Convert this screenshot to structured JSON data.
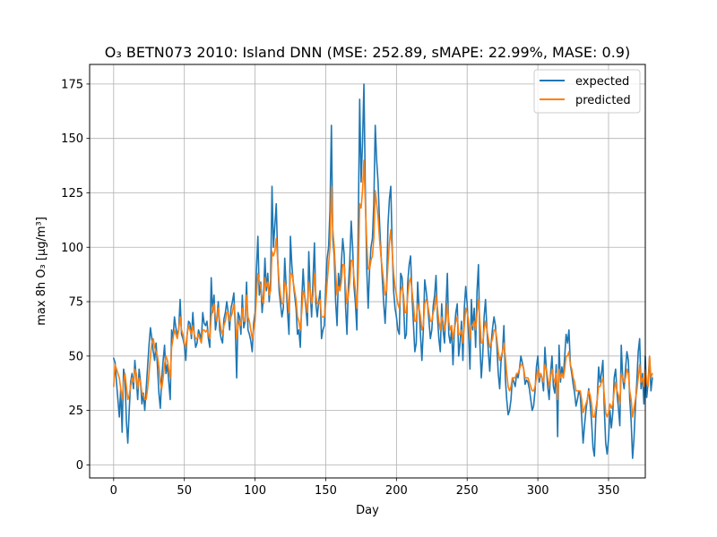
{
  "chart_data": {
    "type": "line",
    "title": "O₃ BETN073 2010: Island DNN (MSE: 252.89, sMAPE: 22.99%, MASE: 0.9)",
    "xlabel": "Day",
    "ylabel": "max 8h O₃ [μg/m³]",
    "xlim": [
      -17,
      376
    ],
    "ylim": [
      -6,
      184
    ],
    "xticks": [
      0,
      50,
      100,
      150,
      200,
      250,
      300,
      350
    ],
    "yticks": [
      0,
      25,
      50,
      75,
      100,
      125,
      150,
      175
    ],
    "grid": true,
    "legend_position": "top-right",
    "series": [
      {
        "name": "expected",
        "color": "#1f77b4",
        "values": [
          49,
          47,
          38,
          30,
          22,
          35,
          15,
          44,
          40,
          20,
          10,
          25,
          38,
          42,
          35,
          48,
          40,
          30,
          44,
          38,
          28,
          33,
          25,
          35,
          45,
          55,
          63,
          58,
          52,
          48,
          56,
          45,
          33,
          26,
          40,
          48,
          55,
          42,
          46,
          38,
          30,
          62,
          58,
          68,
          63,
          60,
          62,
          76,
          60,
          58,
          55,
          48,
          60,
          66,
          65,
          58,
          70,
          60,
          54,
          56,
          62,
          60,
          57,
          70,
          65,
          64,
          66,
          58,
          54,
          86,
          70,
          78,
          62,
          67,
          75,
          62,
          58,
          56,
          67,
          70,
          75,
          70,
          62,
          72,
          75,
          79,
          64,
          40,
          70,
          68,
          60,
          78,
          63,
          66,
          84,
          62,
          60,
          57,
          52,
          65,
          70,
          90,
          105,
          78,
          84,
          70,
          78,
          95,
          80,
          88,
          75,
          85,
          128,
          100,
          110,
          120,
          95,
          80,
          74,
          68,
          72,
          95,
          82,
          70,
          60,
          105,
          92,
          84,
          78,
          72,
          60,
          62,
          54,
          75,
          90,
          78,
          72,
          64,
          98,
          80,
          68,
          85,
          102,
          74,
          68,
          75,
          80,
          58,
          62,
          64,
          82,
          95,
          100,
          117,
          156,
          104,
          96,
          75,
          64,
          88,
          80,
          92,
          104,
          97,
          73,
          60,
          82,
          94,
          112,
          100,
          82,
          74,
          62,
          110,
          168,
          130,
          148,
          175,
          126,
          90,
          72,
          90,
          100,
          104,
          120,
          156,
          140,
          130,
          112,
          98,
          86,
          74,
          65,
          80,
          110,
          122,
          128,
          100,
          80,
          72,
          68,
          62,
          60,
          88,
          86,
          75,
          58,
          60,
          84,
          92,
          96,
          78,
          65,
          52,
          56,
          84,
          72,
          60,
          48,
          62,
          85,
          80,
          74,
          66,
          58,
          62,
          73,
          78,
          87,
          68,
          58,
          52,
          74,
          62,
          56,
          72,
          88,
          60,
          56,
          62,
          46,
          62,
          70,
          74,
          50,
          56,
          66,
          48,
          72,
          82,
          74,
          60,
          44,
          76,
          62,
          72,
          54,
          80,
          92,
          56,
          40,
          50,
          68,
          76,
          62,
          52,
          43,
          56,
          63,
          68,
          64,
          55,
          42,
          35,
          48,
          52,
          64,
          40,
          30,
          23,
          25,
          30,
          40,
          38,
          36,
          42,
          40,
          44,
          50,
          47,
          44,
          37,
          39,
          38,
          35,
          30,
          25,
          27,
          34,
          45,
          50,
          38,
          42,
          40,
          34,
          54,
          44,
          36,
          30,
          42,
          50,
          36,
          33,
          46,
          13,
          55,
          38,
          45,
          40,
          50,
          60,
          56,
          62,
          46,
          42,
          37,
          33,
          27,
          30,
          34,
          32,
          22,
          10,
          18,
          25,
          30,
          35,
          28,
          20,
          8,
          4,
          22,
          30,
          45,
          38,
          42,
          48,
          26,
          10,
          5,
          12,
          25,
          17,
          24,
          40,
          44,
          33,
          26,
          18,
          55,
          40,
          35,
          44,
          52,
          48,
          30,
          20,
          3,
          12,
          27,
          38,
          52,
          58,
          35,
          42,
          28,
          50,
          31,
          38,
          50,
          34,
          40
        ]
      },
      {
        "name": "predicted",
        "color": "#ff7f0e",
        "values": [
          36,
          46,
          44,
          42,
          40,
          35,
          30,
          38,
          42,
          36,
          30,
          32,
          36,
          40,
          38,
          44,
          42,
          35,
          40,
          38,
          33,
          32,
          30,
          30,
          35,
          42,
          50,
          56,
          58,
          54,
          52,
          50,
          45,
          38,
          35,
          40,
          46,
          50,
          48,
          44,
          40,
          54,
          58,
          62,
          60,
          58,
          62,
          68,
          62,
          60,
          56,
          54,
          60,
          64,
          62,
          60,
          64,
          60,
          58,
          58,
          60,
          58,
          56,
          62,
          62,
          61,
          62,
          60,
          58,
          68,
          72,
          74,
          68,
          66,
          72,
          66,
          62,
          60,
          64,
          66,
          70,
          70,
          66,
          68,
          70,
          74,
          68,
          58,
          64,
          66,
          64,
          72,
          66,
          66,
          78,
          68,
          66,
          62,
          58,
          62,
          66,
          78,
          88,
          84,
          82,
          76,
          74,
          86,
          82,
          84,
          78,
          80,
          98,
          96,
          98,
          104,
          94,
          84,
          78,
          74,
          74,
          84,
          82,
          76,
          70,
          88,
          88,
          84,
          80,
          76,
          68,
          66,
          62,
          70,
          80,
          78,
          74,
          70,
          84,
          80,
          74,
          78,
          88,
          78,
          74,
          74,
          76,
          68,
          68,
          68,
          74,
          84,
          92,
          100,
          128,
          108,
          100,
          88,
          78,
          82,
          80,
          84,
          92,
          92,
          82,
          74,
          78,
          84,
          94,
          94,
          86,
          80,
          72,
          88,
          120,
          118,
          126,
          140,
          120,
          102,
          90,
          90,
          94,
          96,
          104,
          126,
          120,
          114,
          104,
          96,
          90,
          84,
          78,
          80,
          92,
          102,
          108,
          98,
          88,
          82,
          78,
          74,
          72,
          80,
          82,
          78,
          70,
          70,
          78,
          84,
          86,
          80,
          74,
          66,
          66,
          74,
          72,
          68,
          62,
          64,
          74,
          76,
          74,
          70,
          66,
          66,
          70,
          72,
          78,
          72,
          66,
          62,
          68,
          66,
          62,
          66,
          74,
          66,
          62,
          64,
          58,
          62,
          66,
          68,
          60,
          60,
          62,
          56,
          64,
          72,
          70,
          66,
          58,
          64,
          64,
          66,
          62,
          70,
          76,
          66,
          56,
          56,
          62,
          66,
          62,
          58,
          54,
          56,
          58,
          62,
          62,
          58,
          52,
          48,
          50,
          52,
          56,
          50,
          42,
          36,
          34,
          36,
          40,
          40,
          40,
          42,
          42,
          44,
          46,
          46,
          44,
          40,
          40,
          40,
          38,
          36,
          34,
          34,
          36,
          40,
          44,
          40,
          42,
          40,
          38,
          46,
          44,
          40,
          36,
          40,
          44,
          40,
          38,
          42,
          30,
          44,
          40,
          42,
          40,
          44,
          50,
          50,
          52,
          46,
          44,
          40,
          38,
          34,
          34,
          34,
          34,
          30,
          24,
          26,
          28,
          30,
          34,
          32,
          28,
          22,
          22,
          26,
          30,
          36,
          36,
          38,
          40,
          32,
          24,
          22,
          24,
          28,
          26,
          28,
          34,
          38,
          34,
          32,
          28,
          42,
          40,
          38,
          40,
          44,
          42,
          34,
          30,
          22,
          26,
          30,
          34,
          40,
          46,
          38,
          40,
          36,
          44,
          38,
          36,
          50,
          40,
          42
        ]
      }
    ]
  }
}
